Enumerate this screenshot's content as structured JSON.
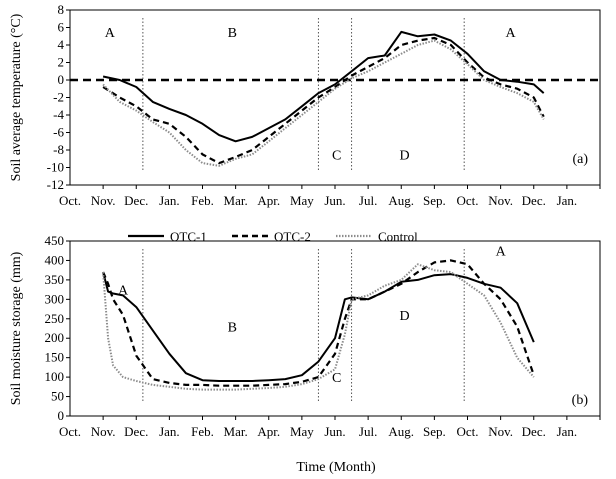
{
  "xlabel": "Time (Month)",
  "month_ticks": [
    "Oct.",
    "Nov.",
    "Dec.",
    "Jan.",
    "Feb.",
    "Mar.",
    "Apr.",
    "May",
    "Jun.",
    "Jul.",
    "Aug.",
    "Sep.",
    "Oct.",
    "Nov.",
    "Dec.",
    "Jan."
  ],
  "colors": {
    "otc1": "#000000",
    "otc2": "#000000",
    "control": "#8c8c8c"
  },
  "chart_data": [
    {
      "type": "line",
      "panel_label": "(a)",
      "ylabel": "Soil average temperature (°C)",
      "ylim": [
        -12,
        8
      ],
      "yticks": [
        -12,
        -10,
        -8,
        -6,
        -4,
        -2,
        0,
        2,
        4,
        6,
        8
      ],
      "xticks": [
        "Oct.",
        "Nov.",
        "Dec.",
        "Jan.",
        "Feb.",
        "Mar.",
        "Apr.",
        "May",
        "Jun.",
        "Jul.",
        "Aug.",
        "Sep.",
        "Oct.",
        "Nov.",
        "Dec.",
        "Jan."
      ],
      "zero_reference_line": 0,
      "zone_dividers_month_index": [
        2.2,
        7.5,
        8.5,
        11.9
      ],
      "zone_labels": [
        {
          "text": "A",
          "x": 1.2,
          "y": 5.5
        },
        {
          "text": "B",
          "x": 4.9,
          "y": 5.5
        },
        {
          "text": "C",
          "x": 8.05,
          "y": -8.5
        },
        {
          "text": "D",
          "x": 10.1,
          "y": -8.5
        },
        {
          "text": "A",
          "x": 13.3,
          "y": 5.5
        }
      ],
      "x": [
        1,
        1.5,
        2,
        2.5,
        3,
        3.5,
        4,
        4.5,
        5,
        5.5,
        6,
        6.5,
        7,
        7.5,
        8,
        8.5,
        9,
        9.5,
        10,
        10.5,
        11,
        11.5,
        12,
        12.5,
        13,
        13.5,
        14,
        14.3
      ],
      "series": [
        {
          "name": "OTC-1",
          "style": "solid",
          "values": [
            0.4,
            0.0,
            -0.8,
            -2.5,
            -3.3,
            -4.0,
            -5.0,
            -6.3,
            -7.0,
            -6.5,
            -5.5,
            -4.5,
            -3.0,
            -1.5,
            -0.5,
            1.0,
            2.5,
            2.8,
            5.5,
            5.0,
            5.2,
            4.5,
            3.0,
            1.0,
            0.0,
            -0.2,
            -0.5,
            -1.5
          ]
        },
        {
          "name": "OTC-2",
          "style": "dashed",
          "values": [
            -0.8,
            -2.0,
            -3.0,
            -4.5,
            -5.0,
            -6.5,
            -8.5,
            -9.5,
            -8.8,
            -8.0,
            -6.5,
            -5.0,
            -3.5,
            -2.0,
            -0.8,
            0.5,
            1.5,
            2.5,
            4.0,
            4.5,
            4.8,
            4.0,
            2.0,
            0.3,
            -0.5,
            -1.0,
            -2.0,
            -4.2
          ]
        },
        {
          "name": "Control",
          "style": "dotted",
          "values": [
            -0.5,
            -2.5,
            -3.5,
            -4.8,
            -6.0,
            -8.0,
            -9.5,
            -9.8,
            -9.0,
            -8.5,
            -7.0,
            -5.5,
            -4.0,
            -2.5,
            -1.0,
            0.2,
            1.0,
            2.0,
            3.0,
            4.0,
            4.5,
            3.5,
            1.8,
            0.0,
            -0.8,
            -1.5,
            -2.5,
            -4.5
          ]
        }
      ]
    },
    {
      "type": "line",
      "panel_label": "(b)",
      "ylabel": "Soil moisture storage (mm)",
      "ylim": [
        0,
        450
      ],
      "yticks": [
        0,
        50,
        100,
        150,
        200,
        250,
        300,
        350,
        400,
        450
      ],
      "xticks": [
        "Oct.",
        "Nov.",
        "Dec.",
        "Jan.",
        "Feb.",
        "Mar.",
        "Apr.",
        "May",
        "Jun.",
        "Jul.",
        "Aug.",
        "Sep.",
        "Oct.",
        "Nov.",
        "Dec.",
        "Jan."
      ],
      "zone_dividers_month_index": [
        2.2,
        7.5,
        8.5,
        11.9
      ],
      "zone_labels": [
        {
          "text": "A",
          "x": 1.6,
          "y": 325
        },
        {
          "text": "B",
          "x": 4.9,
          "y": 230
        },
        {
          "text": "C",
          "x": 8.05,
          "y": 100
        },
        {
          "text": "D",
          "x": 10.1,
          "y": 260
        },
        {
          "text": "A",
          "x": 13.0,
          "y": 425
        }
      ],
      "legend": {
        "placement": "top",
        "entries": [
          "OTC-1",
          "OTC-2",
          "Control"
        ]
      },
      "x": [
        1,
        1.15,
        1.3,
        1.6,
        2,
        2.5,
        3,
        3.5,
        4,
        4.5,
        5,
        5.5,
        6,
        6.5,
        7,
        7.5,
        8,
        8.3,
        8.5,
        9,
        9.5,
        10,
        10.5,
        11,
        11.5,
        12,
        12.5,
        13,
        13.5,
        14
      ],
      "series": [
        {
          "name": "OTC-1",
          "style": "solid",
          "values": [
            370,
            320,
            315,
            310,
            280,
            220,
            160,
            110,
            92,
            90,
            90,
            90,
            92,
            95,
            105,
            140,
            200,
            300,
            305,
            300,
            320,
            345,
            350,
            362,
            365,
            355,
            340,
            330,
            290,
            190
          ]
        },
        {
          "name": "OTC-2",
          "style": "dashed",
          "values": [
            370,
            340,
            300,
            260,
            155,
            95,
            85,
            80,
            80,
            78,
            78,
            78,
            80,
            82,
            88,
            100,
            160,
            250,
            300,
            300,
            320,
            340,
            370,
            395,
            400,
            390,
            340,
            300,
            230,
            105
          ]
        },
        {
          "name": "Control",
          "style": "dotted",
          "values": [
            370,
            200,
            130,
            100,
            90,
            80,
            75,
            70,
            68,
            68,
            68,
            70,
            72,
            75,
            82,
            95,
            120,
            210,
            300,
            310,
            335,
            350,
            390,
            375,
            370,
            340,
            310,
            240,
            150,
            100
          ]
        }
      ]
    }
  ]
}
